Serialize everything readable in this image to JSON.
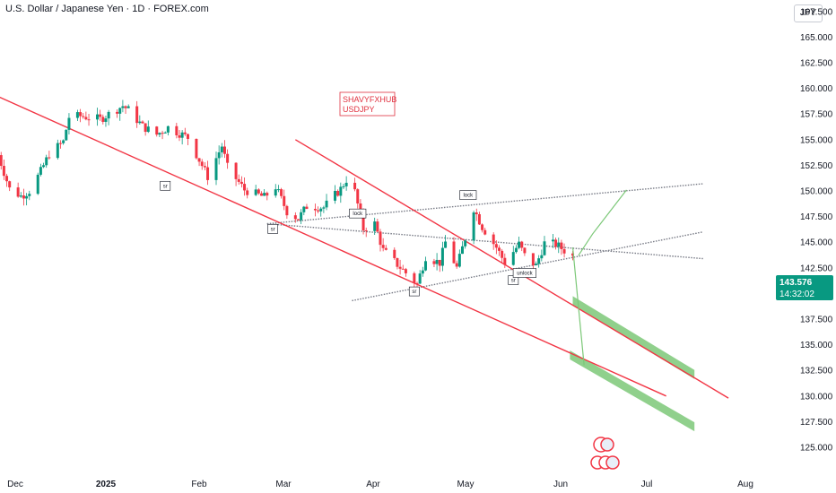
{
  "header": {
    "title": "U.S. Dollar / Japanese Yen · 1D · FOREX.com",
    "currency": "JPY"
  },
  "watermark": {
    "line1": "SHAVYFXHUB",
    "line2": "USDJPY"
  },
  "last_price": {
    "value": "143.576",
    "countdown": "14:32:02",
    "color": "#089981"
  },
  "colors": {
    "up": "#089981",
    "down": "#f23645",
    "trendline": "#f23645",
    "projection": "#7cc878",
    "target_zone": "#7cc878",
    "dotted": "#787b86"
  },
  "chart_data": {
    "type": "candlestick",
    "title": "U.S. Dollar / Japanese Yen · 1D · FOREX.com",
    "y_axis": {
      "ticks": [
        "167.500",
        "165.000",
        "162.500",
        "160.000",
        "157.500",
        "155.000",
        "152.500",
        "150.000",
        "147.500",
        "145.000",
        "142.500",
        "140.000",
        "137.500",
        "135.000",
        "132.500",
        "130.000",
        "127.500",
        "125.000"
      ],
      "range": [
        124.0,
        169.5
      ]
    },
    "x_axis": {
      "ticks": [
        {
          "label": "Dec",
          "bold": false
        },
        {
          "label": "2025",
          "bold": true
        },
        {
          "label": "Feb",
          "bold": false
        },
        {
          "label": "Mar",
          "bold": false
        },
        {
          "label": "Apr",
          "bold": false
        },
        {
          "label": "May",
          "bold": false
        },
        {
          "label": "Jun",
          "bold": false
        },
        {
          "label": "Jul",
          "bold": false
        },
        {
          "label": "Aug",
          "bold": false
        }
      ]
    },
    "price_path": [
      [
        "2024-11-25",
        153.5
      ],
      [
        "2024-11-29",
        150.2
      ],
      [
        "2024-12-03",
        149.5
      ],
      [
        "2024-12-06",
        150.0
      ],
      [
        "2024-12-10",
        151.9
      ],
      [
        "2024-12-13",
        153.6
      ],
      [
        "2024-12-18",
        154.8
      ],
      [
        "2024-12-20",
        157.2
      ],
      [
        "2024-12-24",
        157.3
      ],
      [
        "2024-12-31",
        157.0
      ],
      [
        "2025-01-08",
        158.3
      ],
      [
        "2025-01-10",
        157.9
      ],
      [
        "2025-01-15",
        156.3
      ],
      [
        "2025-01-20",
        155.5
      ],
      [
        "2025-01-24",
        156.2
      ],
      [
        "2025-01-31",
        155.2
      ],
      [
        "2025-02-07",
        151.4
      ],
      [
        "2025-02-12",
        154.4
      ],
      [
        "2025-02-14",
        152.3
      ],
      [
        "2025-02-20",
        150.1
      ],
      [
        "2025-02-27",
        149.4
      ],
      [
        "2025-03-03",
        150.4
      ],
      [
        "2025-03-07",
        148.0
      ],
      [
        "2025-03-11",
        147.3
      ],
      [
        "2025-03-14",
        148.5
      ],
      [
        "2025-03-20",
        148.4
      ],
      [
        "2025-03-26",
        150.2
      ],
      [
        "2025-03-28",
        151.1
      ],
      [
        "2025-03-31",
        149.9
      ],
      [
        "2025-04-03",
        146.3
      ],
      [
        "2025-04-07",
        146.8
      ],
      [
        "2025-04-10",
        144.2
      ],
      [
        "2025-04-14",
        143.1
      ],
      [
        "2025-04-18",
        142.0
      ],
      [
        "2025-04-22",
        140.9
      ],
      [
        "2025-04-25",
        143.6
      ],
      [
        "2025-04-30",
        143.0
      ],
      [
        "2025-05-02",
        145.0
      ],
      [
        "2025-05-06",
        142.5
      ],
      [
        "2025-05-09",
        145.4
      ],
      [
        "2025-05-12",
        148.3
      ],
      [
        "2025-05-15",
        146.5
      ],
      [
        "2025-05-20",
        144.5
      ],
      [
        "2025-05-23",
        143.0
      ],
      [
        "2025-05-28",
        144.8
      ],
      [
        "2025-05-30",
        143.7
      ],
      [
        "2025-06-03",
        142.7
      ],
      [
        "2025-06-06",
        144.9
      ],
      [
        "2025-06-10",
        144.8
      ],
      [
        "2025-06-13",
        144.2
      ],
      [
        "2025-06-16",
        143.6
      ]
    ],
    "channel_upper": [
      [
        "2024-11-25",
        159.2
      ],
      [
        "2025-07-19",
        130.0
      ]
    ],
    "channel_lower": [
      [
        "2025-03-10",
        155.0
      ],
      [
        "2025-08-10",
        129.8
      ]
    ],
    "support_lines": [
      {
        "from": [
          "2025-02-28",
          146.8
        ],
        "to": [
          "2025-08-01",
          150.7
        ]
      },
      {
        "from": [
          "2025-02-28",
          146.8
        ],
        "to": [
          "2025-08-01",
          143.4
        ]
      },
      {
        "from": [
          "2025-03-30",
          139.3
        ],
        "to": [
          "2025-08-01",
          146.0
        ]
      }
    ],
    "projection": [
      [
        "2025-06-18",
        143.7
      ],
      [
        "2025-06-23",
        145.8
      ],
      [
        "2025-07-05",
        150.1
      ]
    ],
    "projection_down": [
      [
        "2025-06-16",
        144.5
      ],
      [
        "2025-06-20",
        133.0
      ]
    ],
    "target_zones": [
      {
        "from": [
          "2025-06-16",
          139.3
        ],
        "to": [
          "2025-07-29",
          132.1
        ]
      },
      {
        "from": [
          "2025-06-15",
          134.0
        ],
        "to": [
          "2025-07-29",
          127.0
        ]
      }
    ],
    "annotations": [
      {
        "label": "sr",
        "date": "2025-01-23",
        "price": 150.5
      },
      {
        "label": "sr",
        "date": "2025-03-02",
        "price": 146.3
      },
      {
        "label": "lock",
        "date": "2025-04-01",
        "price": 147.8
      },
      {
        "label": "sr",
        "date": "2025-04-21",
        "price": 140.2
      },
      {
        "label": "lock",
        "date": "2025-05-10",
        "price": 149.6
      },
      {
        "label": "sr",
        "date": "2025-05-26",
        "price": 141.3
      },
      {
        "label": "unlock",
        "date": "2025-05-30",
        "price": 142.0
      }
    ]
  }
}
